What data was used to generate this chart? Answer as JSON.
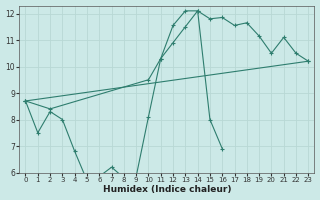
{
  "xlabel": "Humidex (Indice chaleur)",
  "bg_color": "#cce9e7",
  "grid_color": "#b8d8d5",
  "line_color": "#2e7d6e",
  "xlim": [
    -0.5,
    23.5
  ],
  "ylim": [
    6,
    12.3
  ],
  "xticks": [
    0,
    1,
    2,
    3,
    4,
    5,
    6,
    7,
    8,
    9,
    10,
    11,
    12,
    13,
    14,
    15,
    16,
    17,
    18,
    19,
    20,
    21,
    22,
    23
  ],
  "yticks": [
    6,
    7,
    8,
    9,
    10,
    11,
    12
  ],
  "line1_x": [
    0,
    1,
    2,
    3,
    4,
    5,
    6,
    7,
    8,
    9,
    10,
    11,
    12,
    13,
    14,
    15,
    16
  ],
  "line1_y": [
    8.7,
    7.5,
    8.3,
    8.0,
    6.8,
    5.7,
    5.85,
    6.2,
    5.8,
    5.85,
    8.1,
    10.3,
    11.55,
    12.1,
    12.1,
    8.0,
    6.9
  ],
  "line2_x": [
    0,
    23
  ],
  "line2_y": [
    8.7,
    10.2
  ],
  "line3_x": [
    0,
    2,
    10,
    11,
    12,
    13,
    14,
    15,
    16,
    17,
    18,
    19,
    20,
    21,
    22,
    23
  ],
  "line3_y": [
    8.7,
    8.4,
    9.5,
    10.3,
    10.9,
    11.5,
    12.1,
    11.8,
    11.85,
    11.55,
    11.65,
    11.15,
    10.5,
    11.1,
    10.5,
    10.2
  ]
}
